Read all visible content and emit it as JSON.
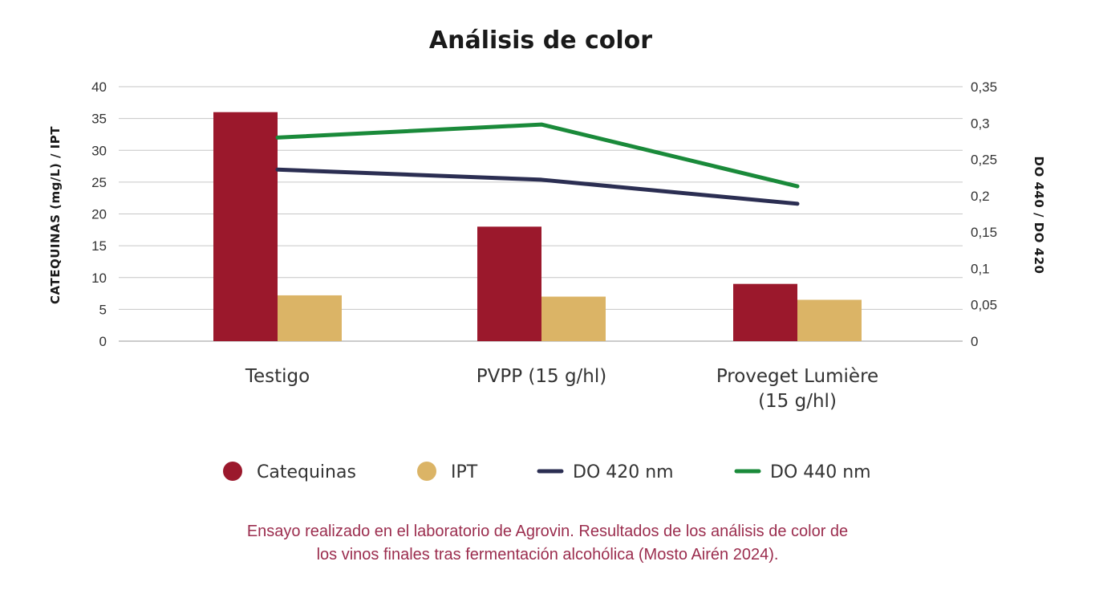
{
  "chart_data": {
    "type": "bar",
    "title": "Análisis de color",
    "categories": [
      "Testigo",
      "PVPP (15 g/hl)",
      "Proveget Lumière (15 g/hl)"
    ],
    "category_lines": [
      [
        "Testigo"
      ],
      [
        "PVPP (15 g/hl)"
      ],
      [
        "Proveget Lumière",
        "(15 g/hl)"
      ]
    ],
    "ylabel": "CATEQUINAS (mg/L) / IPT",
    "ylabel_right": "DO 440 / DO 420",
    "ylim": [
      0,
      40
    ],
    "ylim_right": [
      0,
      0.35
    ],
    "yticks": [
      "0",
      "5",
      "10",
      "15",
      "20",
      "25",
      "30",
      "35",
      "40"
    ],
    "yticks_right": [
      "0",
      "0,05",
      "0,1",
      "0,15",
      "0,2",
      "0,25",
      "0,3",
      "0,35"
    ],
    "grid": true,
    "legend_position": "bottom",
    "series": [
      {
        "name": "Catequinas",
        "kind": "bar",
        "axis": "left",
        "color": "#9b182c",
        "values": [
          36,
          18,
          9
        ]
      },
      {
        "name": "IPT",
        "kind": "bar",
        "axis": "left",
        "color": "#dbb466",
        "values": [
          7.2,
          7.0,
          6.5
        ]
      },
      {
        "name": "DO 420 nm",
        "kind": "line",
        "axis": "right",
        "color": "#2b2e52",
        "values": [
          0.236,
          0.222,
          0.189
        ]
      },
      {
        "name": "DO 440 nm",
        "kind": "line",
        "axis": "right",
        "color": "#1a8a3a",
        "values": [
          0.28,
          0.298,
          0.213
        ]
      }
    ]
  },
  "footnote": {
    "line1": "Ensayo realizado en el laboratorio de Agrovin. Resultados de los análisis de color de",
    "line2": "los vinos finales tras fermentación alcohólica (Mosto Airén 2024)."
  }
}
